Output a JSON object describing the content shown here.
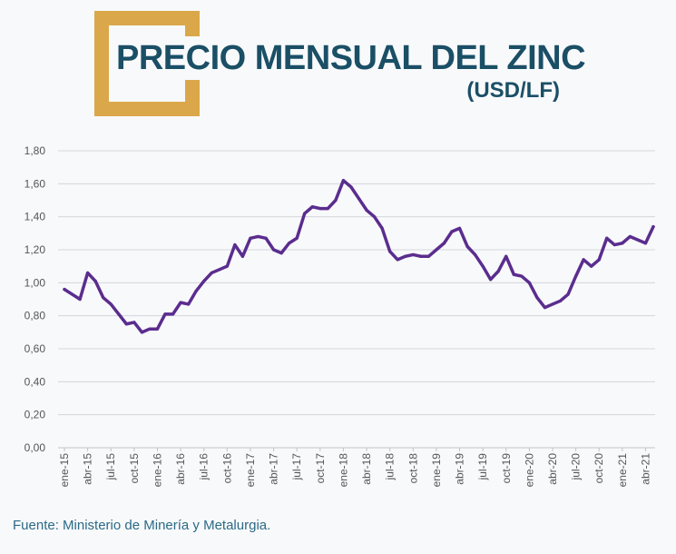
{
  "header": {
    "title": "PRECIO MENSUAL DEL ZINC",
    "subtitle": "(USD/LF)"
  },
  "footer": {
    "source": "Fuente: Ministerio de Minería y Metalurgia."
  },
  "colors": {
    "line": "#5b2d8e",
    "title": "#1a4f66",
    "frame": "#daa84a",
    "grid": "#d3d6db",
    "tick_text": "#555555",
    "source_text": "#2b6a86"
  },
  "chart_data": {
    "type": "line",
    "title": "PRECIO MENSUAL DEL ZINC",
    "subtitle": "(USD/LF)",
    "xlabel": "",
    "ylabel": "",
    "ylim": [
      0,
      1.8
    ],
    "y_ticks": [
      "0,00",
      "0,20",
      "0,40",
      "0,60",
      "0,80",
      "1,00",
      "1,20",
      "1,40",
      "1,60",
      "1,80"
    ],
    "y_tick_values": [
      0,
      0.2,
      0.4,
      0.6,
      0.8,
      1.0,
      1.2,
      1.4,
      1.6,
      1.8
    ],
    "x_tick_labels": [
      "ene-15",
      "abr-15",
      "jul-15",
      "oct-15",
      "ene-16",
      "abr-16",
      "jul-16",
      "oct-16",
      "ene-17",
      "abr-17",
      "jul-17",
      "oct-17",
      "ene-18",
      "abr-18",
      "jul-18",
      "oct-18",
      "ene-19",
      "abr-19",
      "jul-19",
      "oct-19",
      "ene-20",
      "abr-20",
      "jul-20",
      "oct-20",
      "ene-21",
      "abr-21"
    ],
    "grid": true,
    "legend": "none",
    "series": [
      {
        "name": "Zinc (USD/LF)",
        "values": [
          0.96,
          0.93,
          0.9,
          1.06,
          1.01,
          0.91,
          0.87,
          0.81,
          0.75,
          0.76,
          0.7,
          0.72,
          0.72,
          0.81,
          0.81,
          0.88,
          0.87,
          0.95,
          1.01,
          1.06,
          1.08,
          1.1,
          1.23,
          1.16,
          1.27,
          1.28,
          1.27,
          1.2,
          1.18,
          1.24,
          1.27,
          1.42,
          1.46,
          1.45,
          1.45,
          1.5,
          1.62,
          1.58,
          1.51,
          1.44,
          1.4,
          1.33,
          1.19,
          1.14,
          1.16,
          1.17,
          1.16,
          1.16,
          1.2,
          1.24,
          1.31,
          1.33,
          1.22,
          1.17,
          1.1,
          1.02,
          1.07,
          1.16,
          1.05,
          1.04,
          1.0,
          0.91,
          0.85,
          0.87,
          0.89,
          0.93,
          1.04,
          1.14,
          1.1,
          1.14,
          1.27,
          1.23,
          1.24,
          1.28,
          1.26,
          1.24,
          1.34
        ]
      }
    ]
  }
}
